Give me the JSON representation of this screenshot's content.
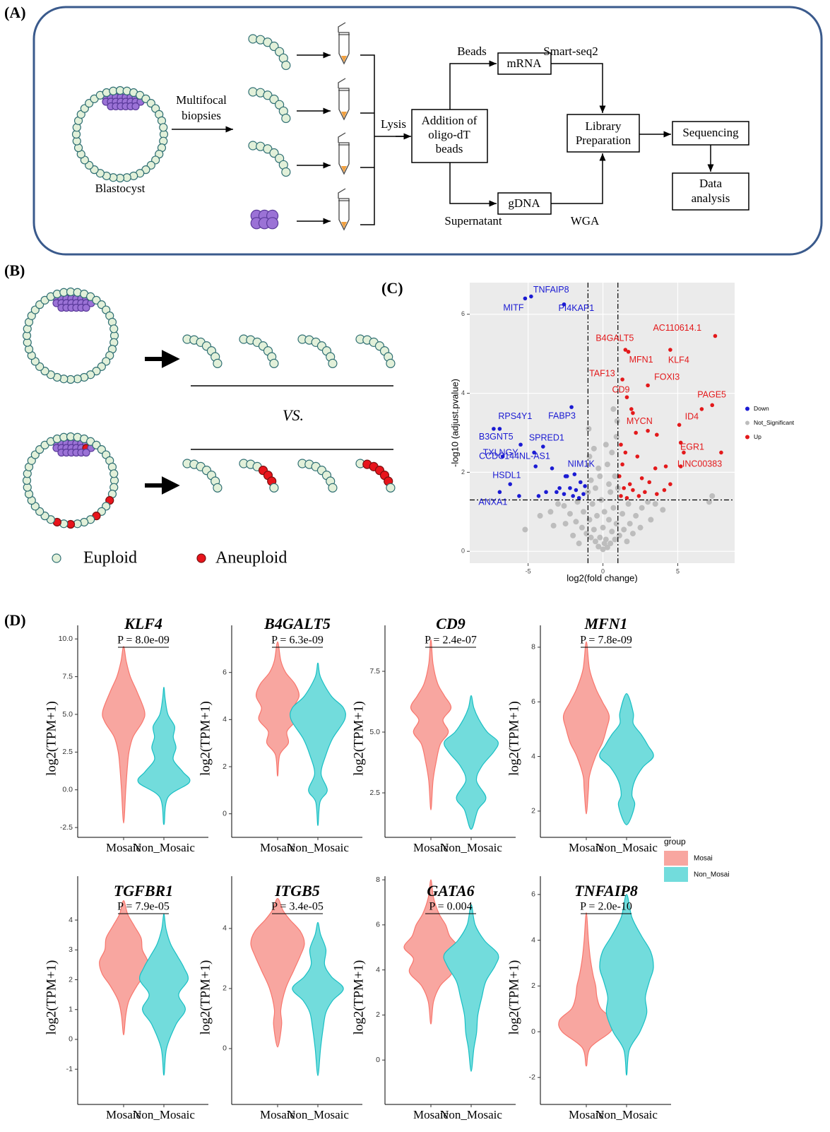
{
  "panel_a": {
    "label": "(A)",
    "blastocyst": "Blastocyst",
    "biopsies": [
      "Multifocal",
      "biopsies"
    ],
    "lysis": "Lysis",
    "addition": [
      "Addition of",
      "oligo-dT",
      "beads"
    ],
    "beads": "Beads",
    "mrna": "mRNA",
    "smart_seq2": "Smart-seq2",
    "library": [
      "Library",
      "Preparation"
    ],
    "sequencing": "Sequencing",
    "supernatant": "Supernatant",
    "gdna": "gDNA",
    "wga": "WGA",
    "data_analysis": [
      "Data",
      "analysis"
    ]
  },
  "panel_b": {
    "label": "(B)",
    "vs": "VS.",
    "legend": [
      "Euploid",
      "Aneuploid"
    ]
  },
  "panel_c": {
    "label": "(C)"
  },
  "panel_d": {
    "label": "(D)",
    "legend": {
      "title": "group",
      "entries": [
        {
          "name": "Mosai",
          "color": "#f8a6a0",
          "line_color": "#f8766d"
        },
        {
          "name": "Non_Mosai",
          "color": "#72dcdc",
          "line_color": "#19bfc4"
        }
      ]
    }
  },
  "chart_data": [
    {
      "type": "scatter",
      "x_label": "log2(fold change)",
      "y_label": "-log10 (adjust.pvalue)",
      "xlim": [
        -8.9,
        8.8
      ],
      "ylim": [
        -0.3,
        6.8
      ],
      "xticks": [
        -5,
        0,
        5
      ],
      "yticks": [
        0,
        2,
        4,
        6
      ],
      "grid": true,
      "legend": "right",
      "vlines": [
        -1,
        1
      ],
      "hline": 1.3,
      "series": [
        {
          "name": "Down",
          "color": "#1b1bd3",
          "x": [
            -4.8,
            -5.2,
            -2.6,
            -2.1,
            -6.9,
            -7.3,
            -4.0,
            -6.7,
            -4.6,
            -2.5,
            -6.2,
            -6.9,
            -5.5,
            -4.5,
            -3.4,
            -2.4,
            -1.9,
            -1.5,
            -2.9,
            -2.2,
            -1.8,
            -3.8,
            -4.3,
            -5.6,
            -1.3,
            -2.6,
            -1.6,
            -3.1,
            -1.2,
            -2.0
          ],
          "values": [
            6.45,
            6.4,
            6.25,
            3.65,
            3.1,
            3.1,
            2.65,
            2.4,
            2.5,
            1.9,
            1.7,
            1.5,
            2.7,
            2.15,
            2.1,
            1.9,
            1.95,
            1.75,
            1.6,
            1.6,
            1.55,
            1.5,
            1.4,
            1.4,
            1.45,
            1.45,
            1.35,
            1.5,
            1.65,
            1.4
          ],
          "labels": [
            "TNFAIP8",
            "MITF",
            "PI4KAP1",
            "FABP3",
            "RPS4Y1",
            "B3GNT5",
            "SPRED1",
            "TXLNGY",
            "CCDC144NL-AS1",
            "NIM1K",
            "HSDL1",
            "ANXA1",
            null,
            null,
            null,
            null,
            null,
            null,
            null,
            null,
            null,
            null,
            null,
            null,
            null,
            null,
            null,
            null,
            null,
            null
          ]
        },
        {
          "name": "Not_Significant",
          "color": "#bdbdbd",
          "x": [
            0,
            0.3,
            -0.3,
            0.5,
            -0.5,
            0.8,
            -0.8,
            1.1,
            -1.1,
            0.2,
            -0.2,
            1.4,
            -1.4,
            0.6,
            -0.6,
            1.8,
            -1.8,
            0.9,
            -0.9,
            2.2,
            -2.2,
            1.3,
            -1.3,
            0.4,
            -0.4,
            2.6,
            -2.6,
            1.7,
            -1.7,
            0.7,
            -0.7,
            3.0,
            -3.0,
            0.1,
            -0.1,
            0.5,
            -0.5,
            0.8,
            -0.8,
            0.3,
            -0.3,
            0.6,
            -0.6,
            0.9,
            -0.9,
            0.4,
            -0.2,
            0.2,
            3.5,
            -3.5,
            4.0,
            -4.2,
            -5.2,
            -2.0,
            2.0,
            7.3,
            7.1,
            2.5,
            -2.5,
            0.95,
            -0.95,
            0.7,
            1.0,
            -1.0,
            0.0,
            0.1,
            -1.6,
            1.6,
            3.2,
            -3.3
          ],
          "values": [
            0.05,
            0.1,
            0.12,
            0.2,
            0.25,
            0.3,
            0.35,
            0.4,
            0.45,
            0.3,
            0.35,
            0.55,
            0.6,
            0.5,
            0.55,
            0.7,
            0.75,
            0.7,
            0.8,
            0.9,
            0.95,
            0.95,
            1.0,
            0.8,
            0.9,
            1.1,
            1.15,
            1.2,
            1.25,
            1.1,
            1.2,
            1.25,
            1.2,
            1.0,
            1.3,
            1.5,
            1.6,
            1.9,
            1.8,
            2.2,
            2.1,
            2.5,
            2.6,
            2.9,
            2.4,
            1.7,
            1.9,
            2.7,
            1.2,
            1.0,
            1.05,
            0.9,
            0.55,
            0.4,
            0.45,
            1.4,
            1.25,
            0.6,
            0.7,
            3.3,
            3.1,
            3.6,
            1.6,
            1.5,
            0.6,
            0.2,
            0.2,
            0.25,
            0.8,
            0.65
          ]
        },
        {
          "name": "Up",
          "color": "#e3191b",
          "x": [
            7.5,
            1.5,
            4.5,
            1.7,
            1.3,
            3.0,
            1.6,
            7.3,
            2.0,
            5.1,
            5.4,
            7.9,
            1.9,
            2.2,
            3.0,
            3.6,
            6.6,
            5.2,
            1.2,
            1.5,
            2.3,
            1.3,
            3.5,
            4.2,
            5.2,
            1.1,
            2.6,
            1.8,
            3.1,
            1.4,
            2.0,
            2.8,
            4.1,
            1.2,
            3.6,
            1.6,
            2.4,
            4.5
          ],
          "values": [
            5.45,
            5.1,
            5.1,
            5.05,
            4.35,
            4.2,
            3.9,
            3.7,
            3.5,
            3.2,
            2.5,
            2.5,
            3.6,
            3.0,
            3.05,
            2.95,
            3.6,
            2.75,
            2.7,
            2.5,
            2.4,
            2.2,
            2.1,
            2.15,
            2.15,
            1.9,
            1.85,
            1.7,
            1.75,
            1.6,
            1.55,
            1.5,
            1.55,
            1.4,
            1.45,
            1.35,
            1.4,
            1.7
          ],
          "labels": [
            "AC110614.1",
            "B4GALT5",
            "KLF4",
            "MFN1",
            "TAF13",
            "FOXI3",
            "CD9",
            "PAGE5",
            "MYCN",
            "ID4",
            "EGR1",
            "LINC00383",
            null,
            null,
            null,
            null,
            null,
            null,
            null,
            null,
            null,
            null,
            null,
            null,
            null,
            null,
            null,
            null,
            null,
            null,
            null,
            null,
            null,
            null,
            null,
            null,
            null,
            null
          ]
        }
      ]
    },
    {
      "type": "violin",
      "title": "KLF4",
      "subtitle": "P = 8.0e-09",
      "y_label": "log2(TPM+1)",
      "categories": [
        "Mosaic",
        "Non_Mosaic"
      ],
      "ylim": [
        -3.15,
        10.9
      ],
      "yticks": [
        {
          "value": 10,
          "label": "10.0"
        },
        7.5,
        {
          "value": 5,
          "label": "5.0"
        },
        2.5,
        {
          "value": 0,
          "label": "0.0"
        },
        -2.5
      ],
      "violins": [
        {
          "y": [
            -2.2,
            0,
            1.5,
            2.5,
            3.5,
            4.5,
            5.2,
            6.5,
            7.5,
            8.5,
            9.5
          ],
          "density": [
            0,
            0.08,
            0.14,
            0.2,
            0.35,
            0.7,
            0.78,
            0.5,
            0.25,
            0.1,
            0
          ]
        },
        {
          "y": [
            -2.3,
            -0.5,
            0.5,
            1.2,
            2,
            2.8,
            3.5,
            4.2,
            5,
            6,
            6.8
          ],
          "density": [
            0,
            0.15,
            0.95,
            0.7,
            0.35,
            0.45,
            0.35,
            0.4,
            0.15,
            0.05,
            0
          ]
        }
      ]
    },
    {
      "type": "violin",
      "title": "B4GALT5",
      "subtitle": "P = 6.3e-09",
      "y_label": "log2(TPM+1)",
      "categories": [
        "Mosaic",
        "Non_Mosaic"
      ],
      "ylim": [
        -1.0,
        8.0
      ],
      "yticks": [
        0,
        2,
        4,
        6
      ],
      "violins": [
        {
          "y": [
            1.6,
            2.5,
            3,
            3.5,
            4,
            4.5,
            5,
            5.5,
            6,
            6.5,
            7.3
          ],
          "density": [
            0,
            0.08,
            0.4,
            0.35,
            0.7,
            0.6,
            0.8,
            0.65,
            0.3,
            0.12,
            0
          ]
        },
        {
          "y": [
            -0.5,
            0.5,
            1,
            1.7,
            2.5,
            3.2,
            4,
            4.5,
            5,
            5.8,
            6.4
          ],
          "density": [
            0,
            0.08,
            0.35,
            0.12,
            0.3,
            0.55,
            1,
            0.95,
            0.5,
            0.1,
            0
          ]
        }
      ]
    },
    {
      "type": "violin",
      "title": "CD9",
      "subtitle": "P = 2.4e-07",
      "y_label": "log2(TPM+1)",
      "categories": [
        "Mosaic",
        "Non_Mosaic"
      ],
      "ylim": [
        0.67,
        9.39
      ],
      "yticks": [
        2.5,
        {
          "value": 5,
          "label": "5.0"
        },
        7.5
      ],
      "violins": [
        {
          "y": [
            1.8,
            3,
            3.8,
            4.5,
            5,
            5.5,
            6,
            6.5,
            7,
            7.8,
            8.8
          ],
          "density": [
            0,
            0.08,
            0.2,
            0.35,
            0.65,
            0.45,
            0.75,
            0.5,
            0.25,
            0.08,
            0
          ]
        },
        {
          "y": [
            1,
            1.8,
            2.3,
            3,
            3.6,
            4.2,
            4.6,
            5,
            5.5,
            6,
            6.5
          ],
          "density": [
            0,
            0.25,
            0.55,
            0.2,
            0.4,
            0.85,
            1,
            0.6,
            0.3,
            0.1,
            0
          ]
        }
      ]
    },
    {
      "type": "violin",
      "title": "MFN1",
      "subtitle": "P = 7.8e-09",
      "y_label": "log2(TPM+1)",
      "categories": [
        "Mosaic",
        "Non_Mosaic"
      ],
      "ylim": [
        1.04,
        8.8
      ],
      "yticks": [
        2,
        4,
        6,
        8
      ],
      "violins": [
        {
          "y": [
            1.9,
            2.8,
            3.3,
            4,
            4.5,
            5,
            5.5,
            6,
            6.5,
            7.2,
            8.2
          ],
          "density": [
            0,
            0.08,
            0.12,
            0.35,
            0.6,
            0.75,
            0.85,
            0.6,
            0.35,
            0.12,
            0
          ]
        },
        {
          "y": [
            1.5,
            2.2,
            2.6,
            3.1,
            3.6,
            4,
            4.4,
            4.8,
            5.2,
            5.6,
            6.3
          ],
          "density": [
            0,
            0.3,
            0.2,
            0.3,
            0.6,
            1,
            0.8,
            0.55,
            0.25,
            0.25,
            0
          ]
        }
      ]
    },
    {
      "type": "violin",
      "title": "TGFBR1",
      "subtitle": "P = 7.9e-05",
      "y_label": "log2(TPM+1)",
      "categories": [
        "Mosaic",
        "Non_Mosaic"
      ],
      "ylim": [
        -2.18,
        5.47
      ],
      "yticks": [
        -1,
        0,
        1,
        2,
        3,
        4
      ],
      "violins": [
        {
          "y": [
            0.15,
            0.8,
            1.3,
            1.8,
            2.2,
            2.6,
            3,
            3.4,
            3.8,
            4.2,
            4.65
          ],
          "density": [
            0,
            0.08,
            0.2,
            0.5,
            0.8,
            0.9,
            0.7,
            0.65,
            0.4,
            0.15,
            0
          ]
        },
        {
          "y": [
            -1.2,
            -0.3,
            0.5,
            1,
            1.5,
            2,
            2.4,
            2.8,
            3.2,
            3.7,
            4.2
          ],
          "density": [
            0,
            0.1,
            0.45,
            0.8,
            0.55,
            0.9,
            0.75,
            0.5,
            0.25,
            0.08,
            0
          ]
        }
      ]
    },
    {
      "type": "violin",
      "title": "ITGB5",
      "subtitle": "P = 3.4e-05",
      "y_label": "log2(TPM+1)",
      "categories": [
        "Mosaic",
        "Non_Mosaic"
      ],
      "ylim": [
        -1.86,
        5.74
      ],
      "yticks": [
        0,
        2,
        4
      ],
      "violins": [
        {
          "y": [
            0.05,
            0.8,
            1.3,
            2,
            2.6,
            3.1,
            3.5,
            3.9,
            4.3,
            4.6,
            5.0
          ],
          "density": [
            0,
            0.15,
            0.12,
            0.3,
            0.6,
            0.85,
            1,
            0.85,
            0.45,
            0.2,
            0
          ]
        },
        {
          "y": [
            -0.9,
            0,
            0.7,
            1.2,
            1.6,
            2,
            2.4,
            2.8,
            3.3,
            3.8,
            4.2
          ],
          "density": [
            0,
            0.1,
            0.2,
            0.3,
            0.55,
            0.95,
            0.5,
            0.25,
            0.3,
            0.1,
            0
          ]
        }
      ]
    },
    {
      "type": "violin",
      "title": "GATA6",
      "subtitle": "P = 0.004",
      "y_label": "log2(TPM+1)",
      "categories": [
        "Mosaic",
        "Non_Mosaic"
      ],
      "ylim": [
        -1.97,
        8.16
      ],
      "yticks": [
        0,
        2,
        4,
        6,
        8
      ],
      "violins": [
        {
          "y": [
            1.6,
            2.6,
            3.3,
            3.9,
            4.5,
            5,
            5.5,
            6,
            6.5,
            7.2,
            8.0
          ],
          "density": [
            0,
            0.1,
            0.35,
            0.8,
            0.65,
            1,
            0.7,
            0.55,
            0.3,
            0.1,
            0
          ]
        },
        {
          "y": [
            -0.5,
            0.5,
            1.2,
            2,
            2.8,
            3.5,
            4.2,
            4.7,
            5.3,
            6,
            6.9
          ],
          "density": [
            0,
            0.1,
            0.2,
            0.25,
            0.4,
            0.55,
            0.9,
            1,
            0.5,
            0.15,
            0
          ]
        }
      ]
    },
    {
      "type": "violin",
      "title": "TNFAIP8",
      "subtitle": "P = 2.0e-10",
      "y_label": "log2(TPM+1)",
      "categories": [
        "Mosaic",
        "Non_Mosaic"
      ],
      "ylim": [
        -3.18,
        6.8
      ],
      "yticks": [
        -2,
        0,
        2,
        4,
        6
      ],
      "violins": [
        {
          "y": [
            -1.5,
            -0.7,
            0,
            0.5,
            1,
            1.5,
            2,
            2.5,
            3.2,
            4,
            5.2
          ],
          "density": [
            0,
            0.15,
            0.9,
            1,
            0.55,
            0.4,
            0.35,
            0.25,
            0.15,
            0.08,
            0
          ]
        },
        {
          "y": [
            -1.9,
            -0.8,
            0,
            0.8,
            1.5,
            2.2,
            2.8,
            3.5,
            4.2,
            5,
            6.0
          ],
          "density": [
            0,
            0.1,
            0.5,
            0.75,
            0.7,
            0.85,
            1,
            0.9,
            0.55,
            0.2,
            0
          ]
        }
      ]
    }
  ]
}
